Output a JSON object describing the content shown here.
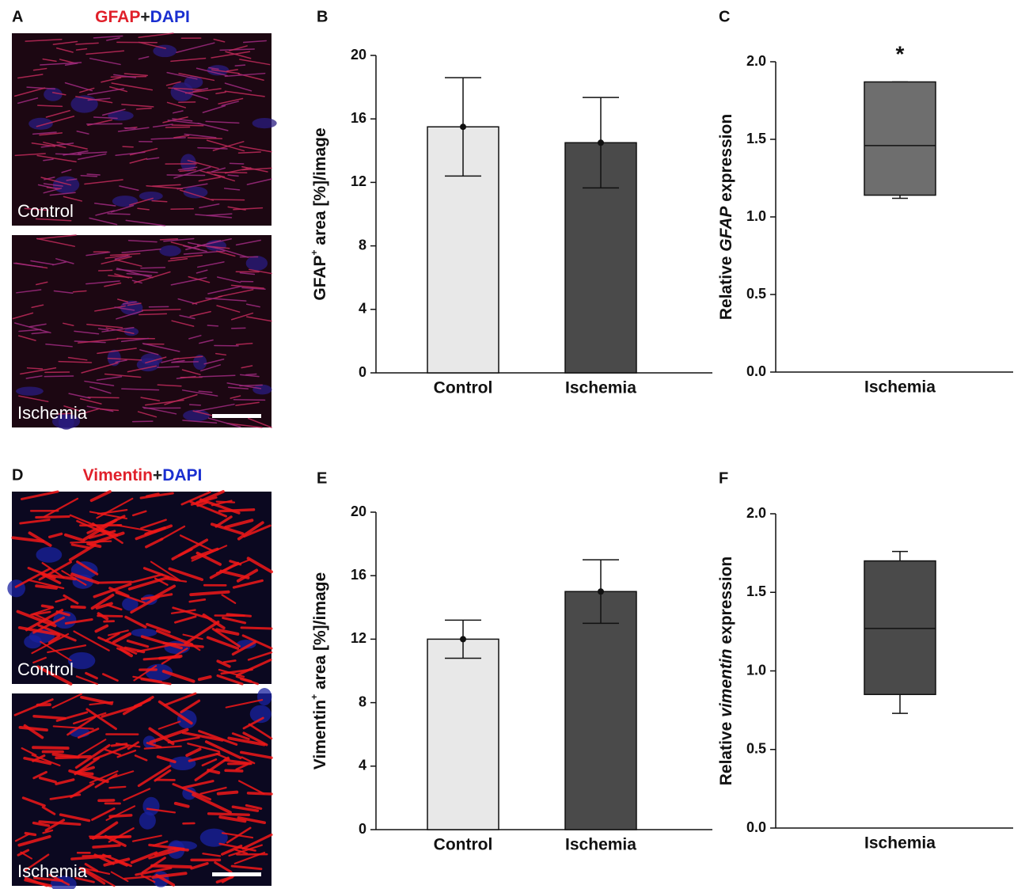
{
  "images": [
    {
      "label": "A",
      "stain": [
        {
          "text": "GFAP",
          "color": "#e0202a"
        },
        {
          "text": "+",
          "color": "#222222"
        },
        {
          "text": "DAPI",
          "color": "#1a2fd0"
        }
      ],
      "captions": [
        "Control",
        "Ischemia"
      ],
      "style": "gfap"
    },
    {
      "label": "D",
      "stain": [
        {
          "text": "Vimentin",
          "color": "#e0202a"
        },
        {
          "text": "+",
          "color": "#222222"
        },
        {
          "text": "DAPI",
          "color": "#1a2fd0"
        }
      ],
      "captions": [
        "Control",
        "Ischemia"
      ],
      "style": "vimentin"
    }
  ],
  "chart_data": [
    {
      "type": "bar",
      "label": "B",
      "ylabel": [
        "GFAP",
        "+",
        " area [%]/image"
      ],
      "categories": [
        "Control",
        "Ischemia"
      ],
      "values": [
        15.5,
        14.5
      ],
      "errors": [
        3.1,
        2.85
      ],
      "colors": [
        "#e8e8e8",
        "#4a4a4a"
      ],
      "ylim": [
        0,
        20
      ],
      "yticks": [
        0,
        4,
        8,
        12,
        16,
        20
      ]
    },
    {
      "type": "box",
      "label": "C",
      "ylabel": [
        "Relative ",
        "GFAP",
        " expression"
      ],
      "categories": [
        "Ischemia"
      ],
      "boxes": [
        {
          "whisker_low": 1.12,
          "q1": 1.14,
          "median": 1.46,
          "q3": 1.87,
          "whisker_high": 1.87
        }
      ],
      "annotation": "*",
      "color": "#6e6e6e",
      "ylim": [
        0,
        2
      ],
      "yticks": [
        {
          "value": 0,
          "label": "0.0"
        },
        0.5,
        {
          "value": 1,
          "label": "1.0"
        },
        1.5,
        {
          "value": 2,
          "label": "2.0"
        }
      ]
    },
    {
      "type": "bar",
      "label": "E",
      "ylabel": [
        "Vimentin",
        "+",
        " area [%]/image"
      ],
      "categories": [
        "Control",
        "Ischemia"
      ],
      "values": [
        12,
        15
      ],
      "errors": [
        1.2,
        2
      ],
      "colors": [
        "#e8e8e8",
        "#4a4a4a"
      ],
      "ylim": [
        0,
        20
      ],
      "yticks": [
        0,
        4,
        8,
        12,
        16,
        20
      ]
    },
    {
      "type": "box",
      "label": "F",
      "ylabel": [
        "Relative ",
        "vimentin",
        " expression"
      ],
      "categories": [
        "Ischemia"
      ],
      "boxes": [
        {
          "whisker_low": 0.73,
          "q1": 0.85,
          "median": 1.27,
          "q3": 1.7,
          "whisker_high": 1.76
        }
      ],
      "color": "#4a4a4a",
      "ylim": [
        0,
        2
      ],
      "yticks": [
        {
          "value": 0,
          "label": "0.0"
        },
        0.5,
        {
          "value": 1,
          "label": "1.0"
        },
        1.5,
        {
          "value": 2,
          "label": "2.0"
        }
      ]
    }
  ]
}
